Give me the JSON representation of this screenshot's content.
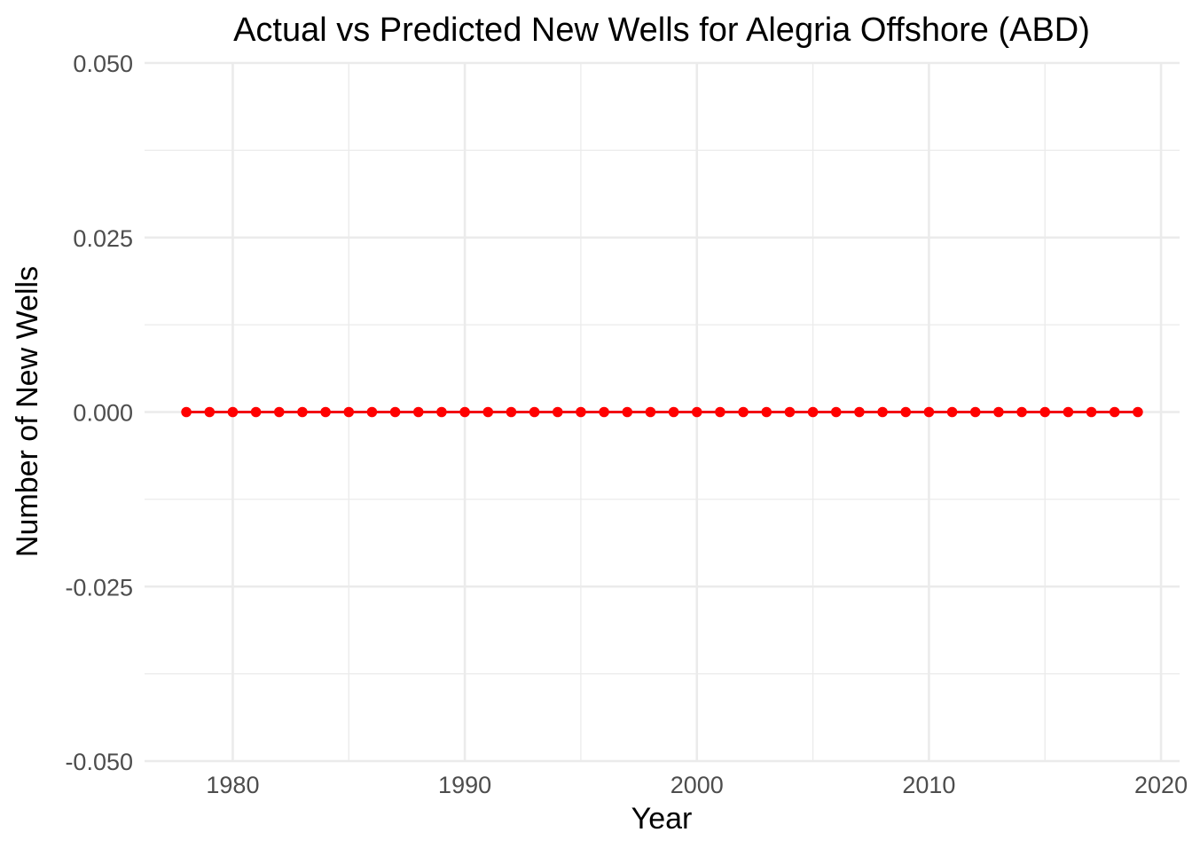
{
  "chart_data": {
    "type": "line",
    "title": "Actual vs Predicted New Wells for Alegria Offshore (ABD)",
    "xlabel": "Year",
    "ylabel": "Number of New Wells",
    "xlim": [
      1976.2,
      2020.8
    ],
    "ylim": [
      -0.05,
      0.05
    ],
    "x_ticks": [
      1980,
      1990,
      2000,
      2010,
      2020
    ],
    "x_tick_labels": [
      "1980",
      "1990",
      "2000",
      "2010",
      "2020"
    ],
    "y_ticks": [
      -0.05,
      -0.025,
      0,
      0.025,
      0.05
    ],
    "y_tick_labels": [
      "-0.050",
      "-0.025",
      "0.000",
      "0.025",
      "0.050"
    ],
    "grid": true,
    "legend": "none",
    "x": [
      1978,
      1979,
      1980,
      1981,
      1982,
      1983,
      1984,
      1985,
      1986,
      1987,
      1988,
      1989,
      1990,
      1991,
      1992,
      1993,
      1994,
      1995,
      1996,
      1997,
      1998,
      1999,
      2000,
      2001,
      2002,
      2003,
      2004,
      2005,
      2006,
      2007,
      2008,
      2009,
      2010,
      2011,
      2012,
      2013,
      2014,
      2015,
      2016,
      2017,
      2018,
      2019
    ],
    "series": [
      {
        "style": "line",
        "color": "#0000ff",
        "values": [
          0,
          0,
          0,
          0,
          0,
          0,
          0,
          0,
          0,
          0,
          0,
          0,
          0,
          0,
          0,
          0,
          0,
          0,
          0,
          0,
          0,
          0,
          0,
          0,
          0,
          0,
          0,
          0,
          0,
          0,
          0,
          0,
          0,
          0,
          0,
          0,
          0,
          0,
          0,
          0,
          0,
          0
        ]
      },
      {
        "style": "line+points",
        "color": "#ff0000",
        "values": [
          0,
          0,
          0,
          0,
          0,
          0,
          0,
          0,
          0,
          0,
          0,
          0,
          0,
          0,
          0,
          0,
          0,
          0,
          0,
          0,
          0,
          0,
          0,
          0,
          0,
          0,
          0,
          0,
          0,
          0,
          0,
          0,
          0,
          0,
          0,
          0,
          0,
          0,
          0,
          0,
          0,
          0
        ]
      }
    ]
  }
}
